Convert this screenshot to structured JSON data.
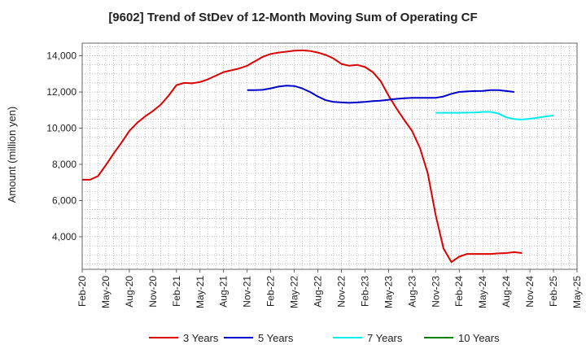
{
  "chart_data": {
    "type": "line",
    "title": "[9602]  Trend of StDev of 12-Month Moving Sum of Operating CF",
    "xlabel": "",
    "ylabel": "Amount (million yen)",
    "x_tick_labels": [
      "Feb-20",
      "May-20",
      "Aug-20",
      "Nov-20",
      "Feb-21",
      "May-21",
      "Aug-21",
      "Nov-21",
      "Feb-22",
      "May-22",
      "Aug-22",
      "Nov-22",
      "Feb-23",
      "May-23",
      "Aug-23",
      "Nov-23",
      "Feb-24",
      "May-24",
      "Aug-24",
      "Nov-24",
      "Feb-25",
      "May-25"
    ],
    "y_ticks": [
      4000,
      6000,
      8000,
      10000,
      12000,
      14000
    ],
    "y_tick_labels": [
      "4,000",
      "6,000",
      "8,000",
      "10,000",
      "12,000",
      "14,000"
    ],
    "ylim": [
      2200,
      14700
    ],
    "grid": true,
    "legend_position": "bottom",
    "series": [
      {
        "name": "3 Years",
        "color": "#dd0000",
        "start": "2020-02",
        "values": [
          7150,
          7150,
          7350,
          7950,
          8600,
          9200,
          9850,
          10300,
          10650,
          10950,
          11300,
          11800,
          12380,
          12500,
          12480,
          12550,
          12700,
          12900,
          13100,
          13200,
          13300,
          13450,
          13700,
          13950,
          14100,
          14180,
          14230,
          14280,
          14300,
          14270,
          14180,
          14050,
          13850,
          13550,
          13450,
          13500,
          13380,
          13100,
          12600,
          11800,
          11100,
          10450,
          9850,
          8900,
          7500,
          5200,
          3350,
          2600,
          2900,
          3050,
          3050,
          3050,
          3050,
          3080,
          3100,
          3150,
          3100
        ]
      },
      {
        "name": "5 Years",
        "color": "#0000cc",
        "start": "2021-11",
        "values": [
          12100,
          12100,
          12120,
          12200,
          12300,
          12350,
          12330,
          12200,
          12000,
          11750,
          11550,
          11450,
          11420,
          11400,
          11420,
          11450,
          11500,
          11520,
          11570,
          11620,
          11650,
          11680,
          11680,
          11680,
          11680,
          11750,
          11900,
          12000,
          12030,
          12050,
          12060,
          12100,
          12100,
          12050,
          12000
        ]
      },
      {
        "name": "7 Years",
        "color": "#00eeee",
        "start": "2023-11",
        "values": [
          10850,
          10850,
          10850,
          10850,
          10860,
          10870,
          10900,
          10900,
          10800,
          10600,
          10500,
          10480,
          10520,
          10580,
          10650,
          10700
        ]
      },
      {
        "name": "10 Years",
        "color": "#008000",
        "start": "2020-02",
        "values": []
      }
    ]
  }
}
